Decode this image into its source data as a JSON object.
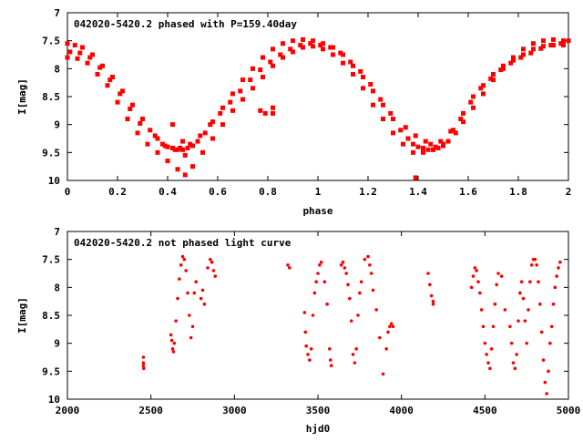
{
  "colors": {
    "series": "#ff0000",
    "axis": "#000000",
    "background": "#ffffff"
  },
  "chart_data": [
    {
      "type": "scatter",
      "title": "042020-5420.2 phased with P=159.40day",
      "xlabel": "phase",
      "ylabel": "I[mag]",
      "xlim": [
        0,
        2
      ],
      "ylim": [
        10,
        7
      ],
      "y_inverted": true,
      "grid": false,
      "x_ticks": [
        "0",
        "0.2",
        "0.4",
        "0.6",
        "0.8",
        "1",
        "1.2",
        "1.4",
        "1.6",
        "1.8",
        "2"
      ],
      "y_ticks": [
        "7",
        "7.5",
        "8",
        "8.5",
        "9",
        "9.5",
        "10"
      ],
      "series": [
        {
          "x": [
            0.0,
            0.03,
            0.06,
            0.1,
            0.14,
            0.18,
            0.22,
            0.26,
            0.3,
            0.33,
            0.36,
            0.38,
            0.4,
            0.42,
            0.44,
            0.46,
            0.48,
            0.5,
            0.52,
            0.55,
            0.58,
            0.62,
            0.66,
            0.7,
            0.74,
            0.78,
            0.82,
            0.86,
            0.9,
            0.94,
            0.98,
            1.02,
            1.06,
            1.1,
            1.14,
            1.18,
            1.22,
            1.26,
            1.3,
            1.33,
            1.36,
            1.38,
            1.4,
            1.42,
            1.44,
            1.46,
            1.48,
            1.5,
            1.52,
            1.55,
            1.58,
            1.62,
            1.66,
            1.7,
            1.74,
            1.78,
            1.82,
            1.86,
            1.9,
            1.94,
            1.98,
            2.0,
            0.0,
            0.04,
            0.08,
            0.12,
            0.16,
            0.2,
            0.24,
            0.28,
            0.32,
            0.36,
            0.4,
            0.44,
            0.47,
            0.5,
            0.54,
            0.58,
            0.62,
            0.66,
            0.7,
            0.74,
            0.78,
            0.82,
            0.86,
            0.9,
            0.94,
            0.98,
            1.02,
            1.06,
            1.1,
            1.14,
            1.18,
            1.22,
            1.26,
            1.3,
            1.34,
            1.38,
            1.42,
            1.46,
            1.5,
            1.54,
            1.58,
            1.62,
            1.66,
            1.7,
            1.74,
            1.78,
            1.82,
            1.86,
            1.9,
            1.94,
            1.98,
            0.01,
            0.05,
            0.09,
            0.13,
            0.17,
            0.21,
            0.25,
            0.29,
            0.35,
            0.39,
            0.43,
            0.45,
            0.49,
            0.53,
            0.57,
            0.61,
            0.65,
            0.69,
            0.73,
            0.77,
            0.81,
            0.85,
            0.89,
            0.93,
            0.97,
            1.01,
            1.05,
            1.09,
            1.13,
            1.17,
            1.21,
            1.25,
            1.29,
            1.35,
            1.39,
            1.43,
            1.45,
            1.49,
            1.53,
            1.57,
            1.61,
            1.65,
            1.69,
            1.73,
            1.77,
            1.81,
            1.85,
            1.89,
            1.93,
            1.97,
            0.42,
            0.46,
            0.47,
            0.77,
            0.79,
            0.82,
            0.82,
            1.39,
            1.47
          ],
          "y": [
            7.55,
            7.58,
            7.62,
            7.75,
            7.95,
            8.15,
            8.4,
            8.65,
            8.9,
            9.1,
            9.25,
            9.35,
            9.4,
            9.42,
            9.45,
            9.45,
            9.42,
            9.38,
            9.3,
            9.15,
            8.95,
            8.7,
            8.45,
            8.2,
            8.0,
            7.8,
            7.65,
            7.55,
            7.5,
            7.48,
            7.5,
            7.55,
            7.62,
            7.75,
            7.95,
            8.15,
            8.4,
            8.65,
            8.9,
            9.1,
            9.25,
            9.35,
            9.4,
            9.42,
            9.45,
            9.45,
            9.42,
            9.38,
            9.3,
            9.15,
            8.95,
            8.7,
            8.45,
            8.2,
            8.0,
            7.8,
            7.65,
            7.55,
            7.5,
            7.48,
            7.5,
            7.5,
            7.8,
            7.82,
            7.9,
            8.1,
            8.3,
            8.6,
            8.9,
            9.15,
            9.35,
            9.5,
            9.65,
            9.8,
            9.9,
            9.75,
            9.5,
            9.25,
            9.0,
            8.75,
            8.55,
            8.35,
            8.15,
            7.95,
            7.8,
            7.7,
            7.62,
            7.6,
            7.65,
            7.75,
            7.9,
            8.1,
            8.35,
            8.65,
            8.9,
            9.15,
            9.35,
            9.5,
            9.5,
            9.45,
            9.35,
            9.1,
            8.8,
            8.5,
            8.3,
            8.1,
            7.95,
            7.85,
            7.75,
            7.65,
            7.6,
            7.58,
            7.58,
            7.7,
            7.72,
            7.8,
            7.98,
            8.2,
            8.45,
            8.72,
            8.98,
            9.2,
            9.38,
            9.45,
            9.42,
            9.35,
            9.2,
            9.0,
            8.8,
            8.6,
            8.4,
            8.2,
            8.02,
            7.88,
            7.75,
            7.65,
            7.58,
            7.55,
            7.58,
            7.62,
            7.72,
            7.88,
            8.05,
            8.28,
            8.55,
            8.8,
            9.05,
            9.2,
            9.3,
            9.35,
            9.3,
            9.12,
            8.9,
            8.6,
            8.35,
            8.18,
            8.02,
            7.9,
            7.8,
            7.72,
            7.64,
            7.58,
            7.55,
            9.0,
            9.3,
            9.55,
            8.75,
            8.8,
            8.7,
            8.8,
            9.95,
            9.4
          ]
        }
      ]
    },
    {
      "type": "scatter",
      "title": "042020-5420.2 not phased light curve",
      "xlabel": "hjd0",
      "ylabel": "I[mag]",
      "xlim": [
        2000,
        5000
      ],
      "ylim": [
        10,
        7
      ],
      "y_inverted": true,
      "grid": false,
      "x_ticks": [
        "2000",
        "2500",
        "3000",
        "3500",
        "4000",
        "4500",
        "5000"
      ],
      "y_ticks": [
        "7",
        "7.5",
        "8",
        "8.5",
        "9",
        "9.5",
        "10"
      ],
      "series": [
        {
          "x": [
            2455,
            2455,
            2455,
            2457,
            2620,
            2625,
            2630,
            2635,
            2640,
            2650,
            2660,
            2670,
            2680,
            2690,
            2700,
            2710,
            2720,
            2730,
            2740,
            2750,
            2760,
            2770,
            2800,
            2810,
            2820,
            2840,
            2855,
            2865,
            2875,
            2885,
            3320,
            3330,
            3420,
            3425,
            3430,
            3440,
            3450,
            3460,
            3470,
            3480,
            3490,
            3500,
            3510,
            3520,
            3540,
            3555,
            3570,
            3575,
            3580,
            3640,
            3650,
            3660,
            3670,
            3680,
            3690,
            3700,
            3710,
            3720,
            3730,
            3740,
            3750,
            3760,
            3780,
            3800,
            3810,
            3820,
            3830,
            3850,
            3870,
            3890,
            3910,
            3920,
            3930,
            3940,
            3950,
            4160,
            4170,
            4180,
            4190,
            4190,
            4420,
            4430,
            4440,
            4450,
            4460,
            4470,
            4480,
            4490,
            4500,
            4510,
            4520,
            4530,
            4540,
            4550,
            4560,
            4570,
            4580,
            4600,
            4620,
            4650,
            4660,
            4670,
            4680,
            4690,
            4700,
            4710,
            4720,
            4730,
            4740,
            4750,
            4760,
            4770,
            4780,
            4790,
            4800,
            4810,
            4820,
            4830,
            4840,
            4850,
            4860,
            4870,
            4880,
            4890,
            4900,
            4910,
            4920,
            4930,
            4940,
            4950
          ],
          "y": [
            9.25,
            9.35,
            9.4,
            9.45,
            8.85,
            8.95,
            9.1,
            9.15,
            9.0,
            8.6,
            8.2,
            7.85,
            7.6,
            7.45,
            7.5,
            7.7,
            8.1,
            8.5,
            8.9,
            8.7,
            8.1,
            7.9,
            8.2,
            8.05,
            8.3,
            7.65,
            7.5,
            7.55,
            7.7,
            7.8,
            7.6,
            7.65,
            8.45,
            8.8,
            9.05,
            9.2,
            9.3,
            9.1,
            8.5,
            8.1,
            7.9,
            7.75,
            7.6,
            7.55,
            7.9,
            8.3,
            9.1,
            9.3,
            9.4,
            7.6,
            7.55,
            7.65,
            7.75,
            7.95,
            8.2,
            8.6,
            9.2,
            9.35,
            9.1,
            8.5,
            8.1,
            7.9,
            7.5,
            7.45,
            7.6,
            7.75,
            8.05,
            8.4,
            8.9,
            9.55,
            9.1,
            8.8,
            8.7,
            8.65,
            8.7,
            7.75,
            7.95,
            8.15,
            8.25,
            8.3,
            8.0,
            7.8,
            7.65,
            7.7,
            7.9,
            8.1,
            8.4,
            8.7,
            9.0,
            9.2,
            9.35,
            9.45,
            9.1,
            8.7,
            8.3,
            7.95,
            7.75,
            7.8,
            8.4,
            8.7,
            9.0,
            9.35,
            9.45,
            9.2,
            8.6,
            8.1,
            7.9,
            8.2,
            8.6,
            9.0,
            8.4,
            7.9,
            7.6,
            7.5,
            7.5,
            7.6,
            7.9,
            8.3,
            8.8,
            9.3,
            9.7,
            9.9,
            9.5,
            9.0,
            8.7,
            8.3,
            8.0,
            7.8,
            7.65,
            7.55
          ]
        }
      ]
    }
  ]
}
